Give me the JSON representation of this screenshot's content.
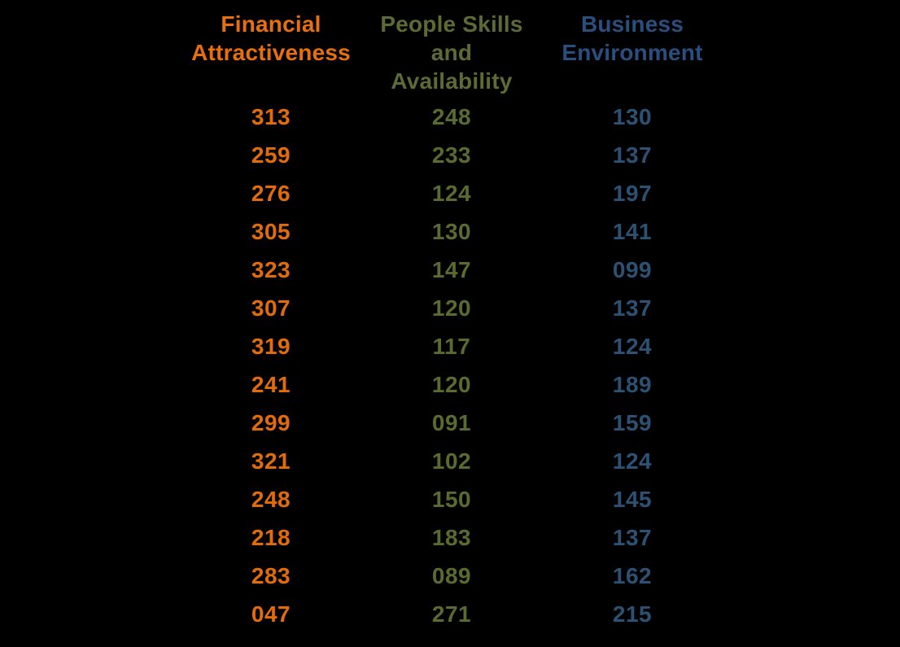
{
  "page": {
    "background_color": "#000000"
  },
  "table": {
    "headers": [
      {
        "label": "Financial\nAttractiveness",
        "color": "#E8700C"
      },
      {
        "label": "People Skills\nand\nAvailability",
        "color": "#5C6B33"
      },
      {
        "label": "Business\nEnvironment",
        "color": "#2A4E7E"
      }
    ],
    "value_colors": [
      "#E36C0A",
      "#5A6B2F",
      "#2C5173"
    ],
    "rows": [
      [
        "313",
        "248",
        "130"
      ],
      [
        "259",
        "233",
        "137"
      ],
      [
        "276",
        "124",
        "197"
      ],
      [
        "305",
        "130",
        "141"
      ],
      [
        "323",
        "147",
        "099"
      ],
      [
        "307",
        "120",
        "137"
      ],
      [
        "319",
        "117",
        "124"
      ],
      [
        "241",
        "120",
        "189"
      ],
      [
        "299",
        "091",
        "159"
      ],
      [
        "321",
        "102",
        "124"
      ],
      [
        "248",
        "150",
        "145"
      ],
      [
        "218",
        "183",
        "137"
      ],
      [
        "283",
        "089",
        "162"
      ],
      [
        "047",
        "271",
        "215"
      ]
    ]
  },
  "chart_data": {
    "type": "table",
    "title": "",
    "columns": [
      "Financial Attractiveness",
      "People Skills and Availability",
      "Business Environment"
    ],
    "series": [
      {
        "name": "Financial Attractiveness",
        "values": [
          313,
          259,
          276,
          305,
          323,
          307,
          319,
          241,
          299,
          321,
          248,
          218,
          283,
          47
        ]
      },
      {
        "name": "People Skills and Availability",
        "values": [
          248,
          233,
          124,
          130,
          147,
          120,
          117,
          120,
          91,
          102,
          150,
          183,
          89,
          271
        ]
      },
      {
        "name": "Business Environment",
        "values": [
          130,
          137,
          197,
          141,
          99,
          137,
          124,
          189,
          159,
          124,
          145,
          137,
          162,
          215
        ]
      }
    ],
    "notes": "Values displayed as zero-padded 3-digit strings on a black background"
  }
}
